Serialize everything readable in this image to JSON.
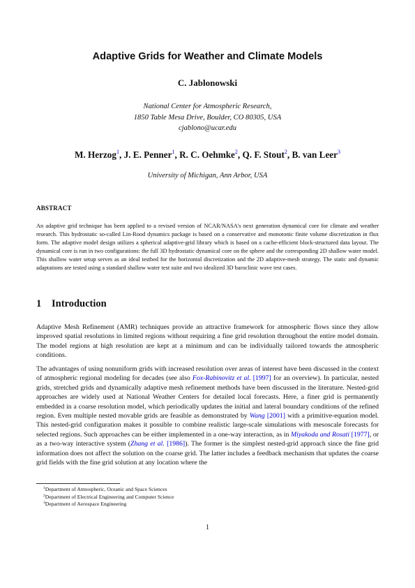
{
  "title": "Adaptive Grids for Weather and Climate Models",
  "first_author": "C. Jablonowski",
  "first_affiliation": {
    "line1": "National Center for Atmospheric Research,",
    "line2": "1850 Table Mesa Drive, Boulder, CO 80305, USA",
    "email": "cjablono@ucar.edu"
  },
  "coauthors": [
    {
      "name": "M. Herzog",
      "mark": "1",
      "sep": ", "
    },
    {
      "name": "J. E. Penner",
      "mark": "1",
      "sep": ", "
    },
    {
      "name": "R. C. Oehmke",
      "mark": "2",
      "sep": ", "
    },
    {
      "name": "Q. F. Stout",
      "mark": "2",
      "sep": ", "
    },
    {
      "name": "B. van Leer",
      "mark": "3",
      "sep": ""
    }
  ],
  "second_affiliation": "University of Michigan, Ann Arbor, USA",
  "abstract": {
    "heading": "ABSTRACT",
    "text": "An adaptive grid technique has been applied to a revised version of NCAR/NASA's next generation dynamical core for climate and weather research. This hydrostatic so-called Lin-Rood dynamics package is based on a conservative and monotonic finite volume discretization in flux form. The adaptive model design utilizes a spherical adaptive-grid library which is based on a cache-efficient block-structured data layout. The dynamical core is run in two configurations: the full 3D hydrostatic dynamical core on the sphere and the corresponding 2D shallow water model. This shallow water setup serves as an ideal testbed for the horizontal discretization and the 2D adaptive-mesh strategy. The static and dynamic adaptations are tested using a standard shallow water test suite and two idealized 3D baroclinic wave test cases."
  },
  "section": {
    "number": "1",
    "title": "Introduction"
  },
  "paragraph1": "Adaptive Mesh Refinement (AMR) techniques provide an attractive framework for atmospheric flows since they allow improved spatial resolutions in limited regions without requiring a fine grid resolution throughout the entire model domain. The model regions at high resolution are kept at a minimum and can be individually tailored towards the atmospheric conditions.",
  "paragraph2": {
    "t1": "The advantages of using nonuniform grids with increased resolution over areas of interest have been discussed in the context of atmospheric regional modeling for decades (see also ",
    "c1_author": "Fox-Rabinovitz et al.",
    "c1_year": "[1997]",
    "t2": " for an overview). In particular, nested grids, stretched grids and dynamically adaptive mesh refinement methods have been discussed in the literature. Nested-grid approaches are widely used at National Weather Centers for detailed local forecasts. Here, a finer grid is permanently embedded in a coarse resolution model, which periodically updates the initial and lateral boundary conditions of the refined region. Even multiple nested movable grids are feasible as demonstrated by ",
    "c2_author": "Wang",
    "c2_year": "[2001]",
    "t3": " with a primitive-equation model. This nested-grid configuration makes it possible to combine realistic large-scale simulations with mesoscale forecasts for selected regions. Such approaches can be either implemented in a one-way interaction, as in ",
    "c3_author": "Miyakoda and Rosati",
    "c3_year": "[1977]",
    "t4": ", or as a two-way interactive system (",
    "c4_author": "Zhang et al.",
    "c4_year": "[1986]",
    "t5": "). The former is the simplest nested-grid approach since the fine grid information does not affect the solution on the coarse grid. The latter includes a feedback mechanism that updates the coarse grid fields with the fine grid solution at any location where the"
  },
  "footnotes": [
    {
      "mark": "1",
      "text": "Department of Atmospheric, Oceanic and Space Sciences"
    },
    {
      "mark": "2",
      "text": "Department of Electrical Engineering and Computer Science"
    },
    {
      "mark": "3",
      "text": "Department of Aerospace Engineering"
    }
  ],
  "page_number": "1",
  "colors": {
    "link": "#0000cc",
    "text": "#111111"
  }
}
